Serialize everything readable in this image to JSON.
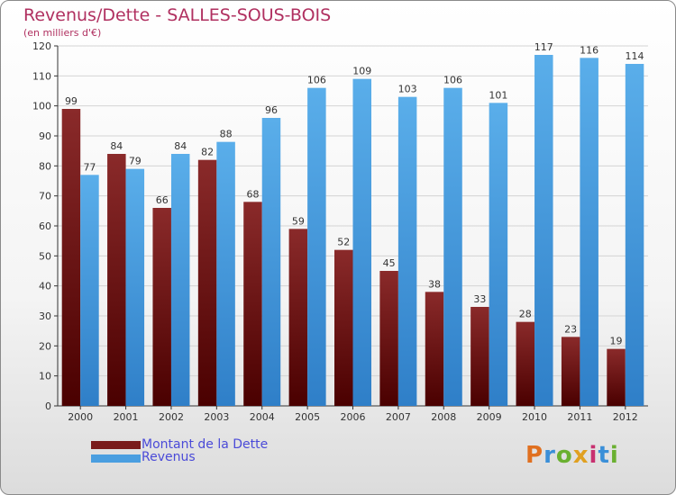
{
  "title": "Revenus/Dette - SALLES-SOUS-BOIS",
  "subtitle": "(en milliers d'€)",
  "logo_text": "Proxiti",
  "colors": {
    "dette": "#7a1a1a",
    "revenus": "#4a9ee0",
    "title": "#b03060",
    "legend_text": "#4a4ad8"
  },
  "legend": [
    {
      "label": "Montant de la Dette",
      "color": "#7a1a1a"
    },
    {
      "label": "Revenus",
      "color": "#4a9ee0"
    }
  ],
  "chart_data": {
    "type": "bar",
    "title": "Revenus/Dette - SALLES-SOUS-BOIS",
    "ylabel": "(en milliers d'€)",
    "xlabel": "",
    "ylim": [
      0,
      120
    ],
    "yticks": [
      0,
      10,
      20,
      30,
      40,
      50,
      60,
      70,
      80,
      90,
      100,
      110,
      120
    ],
    "categories": [
      "2000",
      "2001",
      "2002",
      "2003",
      "2004",
      "2005",
      "2006",
      "2007",
      "2008",
      "2009",
      "2010",
      "2011",
      "2012"
    ],
    "series": [
      {
        "name": "Montant de la Dette",
        "values": [
          99,
          84,
          66,
          82,
          68,
          59,
          52,
          45,
          38,
          33,
          28,
          23,
          19
        ]
      },
      {
        "name": "Revenus",
        "values": [
          77,
          79,
          84,
          88,
          96,
          106,
          109,
          103,
          106,
          101,
          117,
          116,
          114
        ]
      }
    ]
  }
}
